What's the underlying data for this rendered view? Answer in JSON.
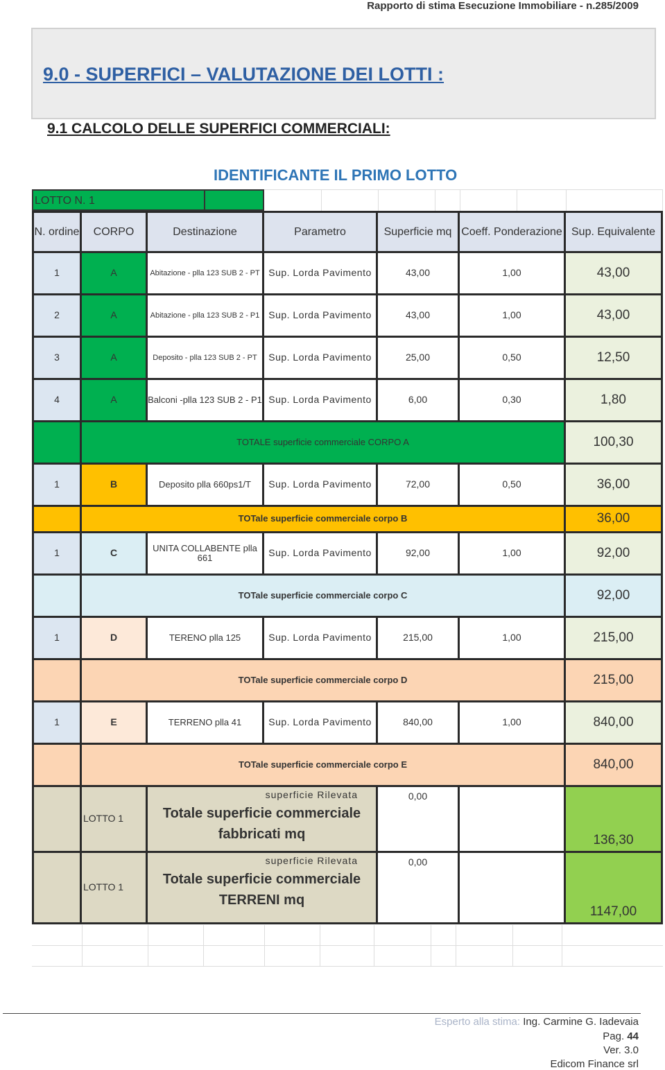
{
  "header": "Rapporto di stima Esecuzione Immobiliare - n.285/2009",
  "section_title": "9.0 - SUPERFICI – VALUTAZIONE DEI LOTTI :",
  "subsection_title": "9.1 CALCOLO DELLE SUPERFICI COMMERCIALI:",
  "lot_heading": "IDENTIFICANTE IL  PRIMO LOTTO",
  "lot_label": "LOTTO N. 1",
  "columns": [
    "N. ordine",
    "CORPO",
    "Destinazione",
    "Parametro",
    "Superficie  mq",
    "Coeff. Ponderazione",
    "Sup. Equivalente"
  ],
  "colors": {
    "green": "#00b050",
    "light_green": "#92d050",
    "orange": "#ffc000",
    "light_blue": "#dbeef4",
    "peach": "#fde9d9",
    "peach_dark": "#fcd5b4",
    "tan": "#ddd9c4",
    "ordine": "#dce6f1",
    "equiv": "#ebf1de"
  },
  "rows": [
    {
      "type": "item",
      "n": "1",
      "corpo": "A",
      "dest": "Abitazione  - plla 123 SUB 2 - PT",
      "param": "Sup. Lorda Pavimento",
      "sup": "43,00",
      "coeff": "1,00",
      "eq": "43,00",
      "color": "#00b050"
    },
    {
      "type": "item",
      "n": "2",
      "corpo": "A",
      "dest": "Abitazione  - plla 123 SUB 2 - P1",
      "param": "Sup. Lorda Pavimento",
      "sup": "43,00",
      "coeff": "1,00",
      "eq": "43,00",
      "color": "#00b050"
    },
    {
      "type": "item",
      "n": "3",
      "corpo": "A",
      "dest": "Deposito   - plla 123 SUB 2 - PT",
      "param": "Sup. Lorda Pavimento",
      "sup": "25,00",
      "coeff": "0,50",
      "eq": "12,50",
      "color": "#00b050"
    },
    {
      "type": "item",
      "n": "4",
      "corpo": "A",
      "dest": "Balconi  -plla 123 SUB 2 - P1",
      "param": "Sup. Lorda Pavimento",
      "sup": "6,00",
      "coeff": "0,30",
      "eq": "1,80",
      "color": "#00b050"
    },
    {
      "type": "total",
      "label": "TOTALE superficie commerciale CORPO A",
      "eq": "100,30",
      "color": "#00b050"
    },
    {
      "type": "item",
      "n": "1",
      "corpo": "B",
      "dest": "Deposito  plla 660ps1/T",
      "param": "Sup. Lorda Pavimento",
      "sup": "72,00",
      "coeff": "0,50",
      "eq": "36,00",
      "color": "#ffc000"
    },
    {
      "type": "total",
      "short": true,
      "label": "TOTale superficie commerciale corpo B",
      "eq": "36,00",
      "color": "#ffc000"
    },
    {
      "type": "item",
      "n": "1",
      "corpo": "C",
      "dest": "UNITA COLLABENTE plla 661",
      "param": "Sup. Lorda Pavimento",
      "sup": "92,00",
      "coeff": "1,00",
      "eq": "92,00",
      "color": "#dbeef4"
    },
    {
      "type": "total",
      "label": "TOTale superficie commerciale corpo C",
      "eq": "92,00",
      "color": "#dbeef4"
    },
    {
      "type": "item",
      "n": "1",
      "corpo": "D",
      "dest": "TERENO plla 125",
      "param": "Sup. Lorda Pavimento",
      "sup": "215,00",
      "coeff": "1,00",
      "eq": "215,00",
      "color": "#fde9d9"
    },
    {
      "type": "total",
      "label": "TOTale superficie commerciale corpo D",
      "eq": "215,00",
      "color": "#fcd5b4"
    },
    {
      "type": "item",
      "n": "1",
      "corpo": "E",
      "dest": "TERRENO plla 41",
      "param": "Sup. Lorda Pavimento",
      "sup": "840,00",
      "coeff": "1,00",
      "eq": "840,00",
      "color": "#fde9d9"
    },
    {
      "type": "total",
      "label": "TOTale superficie commerciale corpo E",
      "eq": "840,00",
      "color": "#fcd5b4"
    }
  ],
  "summary": [
    {
      "lotto": "LOTTO 1",
      "rilevata_label": "superficie Rilevata",
      "rilevata": "0,00",
      "title1": "Totale superficie commerciale",
      "title2": "fabbricati mq",
      "total": "136,30"
    },
    {
      "lotto": "LOTTO 1",
      "rilevata_label": "superficie Rilevata",
      "rilevata": "0,00",
      "title1": "Totale superficie commerciale",
      "title2": "TERRENI mq",
      "total": "1147,00"
    }
  ],
  "footer": {
    "expert_label": "Esperto alla stima:",
    "expert_name": "Ing. Carmine G. Iadevaia",
    "page_label": "Pag.",
    "page": "44",
    "version": "Ver. 3.0",
    "company": "Edicom Finance srl"
  }
}
